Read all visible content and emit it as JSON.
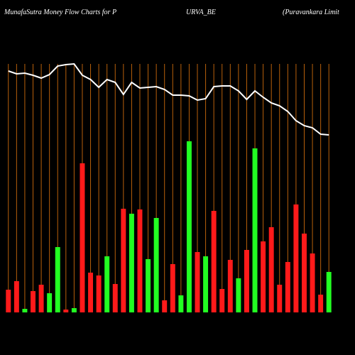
{
  "chart_data": {
    "type": "bar-line",
    "title_parts": [
      "MunafaSutra  Money Flow  Charts for P",
      "URVA_BE",
      "(Puravankara  Limit"
    ],
    "categories": [
      null,
      null,
      null,
      null,
      null,
      null,
      null,
      null,
      null,
      null,
      null,
      null,
      null,
      null,
      null,
      null,
      null,
      null,
      null,
      null,
      null,
      null,
      null,
      null,
      null,
      null,
      null,
      null,
      null,
      null,
      null,
      null,
      null,
      null,
      null,
      null,
      null,
      null,
      null,
      null
    ],
    "bars": {
      "values": [
        32,
        44,
        5,
        30,
        39,
        27,
        92,
        4,
        6,
        210,
        56,
        52,
        79,
        40,
        146,
        139,
        145,
        75,
        133,
        17,
        68,
        24,
        241,
        85,
        79,
        143,
        33,
        74,
        48,
        88,
        231,
        100,
        120,
        39,
        71,
        152,
        111,
        83,
        25,
        57
      ],
      "colors": [
        "#ff1a1a",
        "#ff1a1a",
        "#22ff22",
        "#ff1a1a",
        "#ff1a1a",
        "#22ff22",
        "#22ff22",
        "#ff1a1a",
        "#22ff22",
        "#ff1a1a",
        "#ff1a1a",
        "#ff1a1a",
        "#22ff22",
        "#ff1a1a",
        "#ff1a1a",
        "#22ff22",
        "#ff1a1a",
        "#22ff22",
        "#22ff22",
        "#ff1a1a",
        "#ff1a1a",
        "#22ff22",
        "#22ff22",
        "#ff1a1a",
        "#22ff22",
        "#ff1a1a",
        "#ff1a1a",
        "#ff1a1a",
        "#22ff22",
        "#ff1a1a",
        "#22ff22",
        "#ff1a1a",
        "#ff1a1a",
        "#ff1a1a",
        "#ff1a1a",
        "#ff1a1a",
        "#ff1a1a",
        "#ff1a1a",
        "#ff1a1a",
        "#22ff22"
      ]
    },
    "line": {
      "color": "#ffffff",
      "values": [
        340,
        336,
        337,
        334,
        330,
        335,
        347,
        349,
        350,
        334,
        328,
        317,
        328,
        324,
        307,
        324,
        316,
        317,
        318,
        314,
        306,
        306,
        305,
        299,
        301,
        318,
        319,
        319,
        312,
        300,
        312,
        303,
        295,
        291,
        283,
        270,
        263,
        260,
        251,
        250
      ]
    },
    "ylim": [
      0,
      350
    ],
    "grid_color": "#b8600b"
  }
}
